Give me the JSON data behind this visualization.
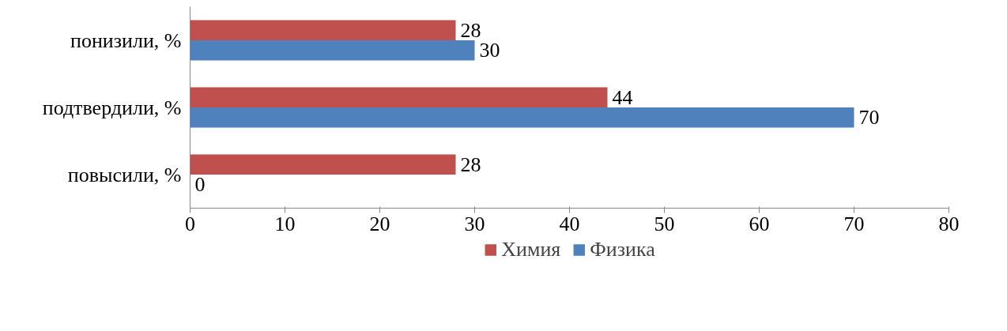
{
  "chart_data": {
    "type": "bar",
    "orientation": "horizontal",
    "categories": [
      "понизили, %",
      "подтвердили, %",
      "повысили, %"
    ],
    "series": [
      {
        "name": "Химия",
        "color": "#c0504d",
        "values": [
          28,
          44,
          28
        ]
      },
      {
        "name": "Физика",
        "color": "#4f81bd",
        "values": [
          30,
          70,
          0
        ]
      }
    ],
    "xlim": [
      0,
      80
    ],
    "xticks": [
      0,
      10,
      20,
      30,
      40,
      50,
      60,
      70,
      80
    ],
    "data_labels": true,
    "legend": "bottom",
    "grid": false
  }
}
